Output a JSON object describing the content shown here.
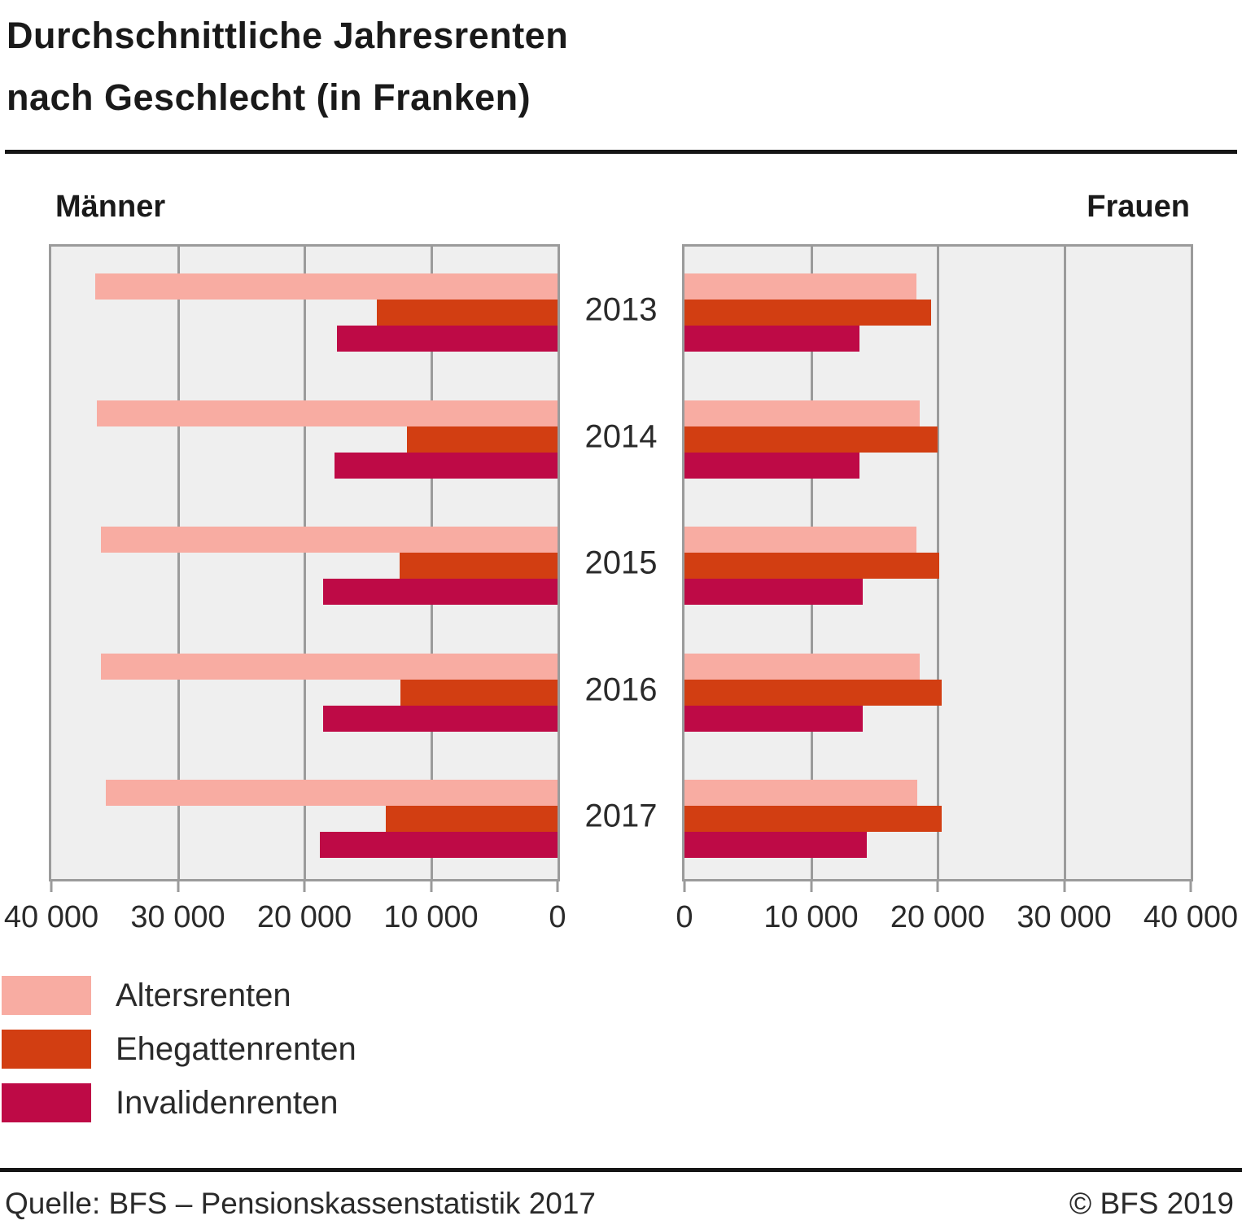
{
  "title": {
    "line1": "Durchschnittliche Jahresrenten",
    "line2": "nach Geschlecht (in Franken)"
  },
  "panel_headers": {
    "left": "Männer",
    "right": "Frauen"
  },
  "legend": {
    "items": [
      {
        "label": "Altersrenten",
        "color": "#F8ACA2"
      },
      {
        "label": "Ehegattenrenten",
        "color": "#D23E12"
      },
      {
        "label": "Invalidenrenten",
        "color": "#BE0A46"
      }
    ]
  },
  "footer": {
    "source": "Quelle: BFS – Pensionskassenstatistik 2017",
    "copyright": "© BFS 2019"
  },
  "colors": {
    "altersrenten": "#F8ACA2",
    "ehegattenrenten": "#D23E12",
    "invalidenrenten": "#BE0A46",
    "plot_background": "#EFEFEF",
    "plot_border": "#9B9B9B",
    "text": "#1A1A1A"
  },
  "chart_data": {
    "type": "bar",
    "orientation": "horizontal",
    "title": "Durchschnittliche Jahresrenten nach Geschlecht (in Franken)",
    "categories": [
      "2013",
      "2014",
      "2015",
      "2016",
      "2017"
    ],
    "axis_max": 40000,
    "grid": true,
    "legend_position": "bottom-left",
    "panels": [
      {
        "name": "Männer",
        "direction": "right-to-left",
        "tick_labels": [
          "40 000",
          "30 000",
          "20 000",
          "10 000",
          "0"
        ],
        "tick_values": [
          40000,
          30000,
          20000,
          10000,
          0
        ],
        "series": [
          {
            "name": "Altersrenten",
            "values": [
              36500,
              36400,
              36100,
              36100,
              35700
            ]
          },
          {
            "name": "Ehegattenrenten",
            "values": [
              14300,
              11900,
              12500,
              12400,
              13600
            ]
          },
          {
            "name": "Invalidenrenten",
            "values": [
              17400,
              17600,
              18500,
              18500,
              18800
            ]
          }
        ]
      },
      {
        "name": "Frauen",
        "direction": "left-to-right",
        "tick_labels": [
          "0",
          "10 000",
          "20 000",
          "30 000",
          "40 000"
        ],
        "tick_values": [
          0,
          10000,
          20000,
          30000,
          40000
        ],
        "series": [
          {
            "name": "Altersrenten",
            "values": [
              18300,
              18600,
              18300,
              18600,
              18400
            ]
          },
          {
            "name": "Ehegattenrenten",
            "values": [
              19500,
              20000,
              20100,
              20300,
              20300
            ]
          },
          {
            "name": "Invalidenrenten",
            "values": [
              13800,
              13800,
              14100,
              14100,
              14400
            ]
          }
        ]
      }
    ]
  }
}
